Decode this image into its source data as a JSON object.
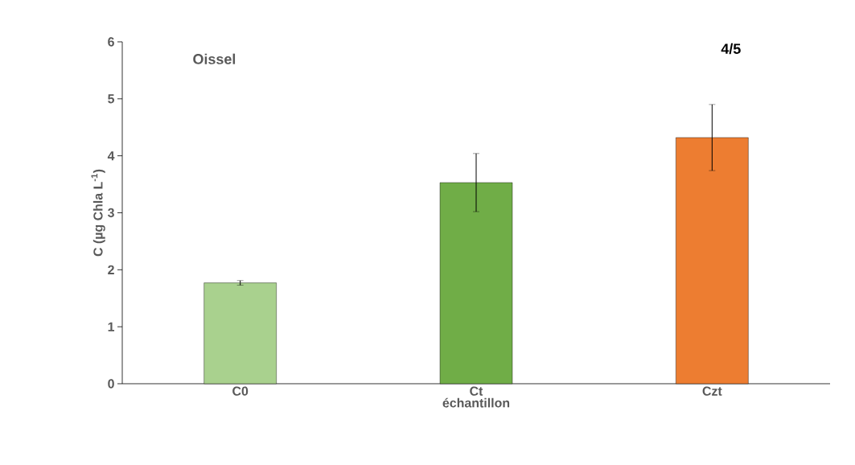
{
  "chart_data": {
    "type": "bar",
    "xlabel": "échantillon",
    "ylabel": "C (µg Chla L$^{-1}$)",
    "categories": [
      "C0",
      "Ct",
      "Czt"
    ],
    "values": [
      1.77,
      3.53,
      4.32
    ],
    "colors": [
      "#a9d18e",
      "#70ad47",
      "#ed7d31"
    ],
    "errors": [
      0.04,
      0.51,
      0.58
    ],
    "ylim": [
      0,
      6
    ],
    "yticks": [
      0,
      1,
      2,
      3,
      4,
      5,
      6
    ],
    "annotations": [
      "Oissel",
      "4/5"
    ]
  }
}
